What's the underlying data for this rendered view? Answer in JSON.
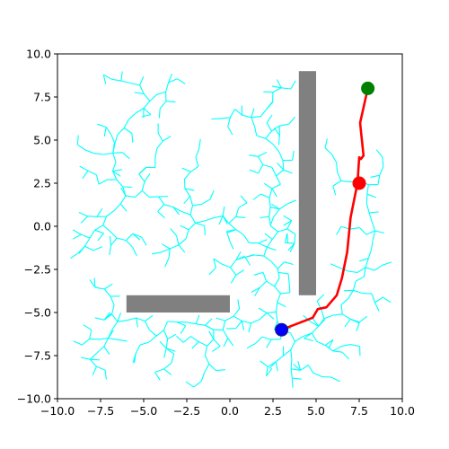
{
  "chart_data": {
    "type": "scatter",
    "title": "",
    "xlabel": "",
    "ylabel": "",
    "xlim": [
      -10,
      10
    ],
    "ylim": [
      -10,
      10
    ],
    "grid": false,
    "x_ticks": [
      -10,
      -7.5,
      -5,
      -2.5,
      0,
      2.5,
      5,
      7.5,
      10
    ],
    "y_ticks": [
      -10,
      -7.5,
      -5,
      -2.5,
      0,
      2.5,
      5,
      7.5,
      10
    ],
    "x_tick_labels": [
      "−10.0",
      "−7.5",
      "−5.0",
      "−2.5",
      "0.0",
      "2.5",
      "5.0",
      "7.5",
      "10.0"
    ],
    "y_tick_labels": [
      "−10.0",
      "−7.5",
      "−5.0",
      "−2.5",
      "0.0",
      "2.5",
      "5.0",
      "7.5",
      "10.0"
    ],
    "obstacles": [
      {
        "name": "vertical-wall",
        "x_range": [
          4.0,
          5.0
        ],
        "y_range": [
          -4.0,
          9.0
        ]
      },
      {
        "name": "horizontal-wall",
        "x_range": [
          -6.0,
          0.0
        ],
        "y_range": [
          -5.0,
          -4.0
        ]
      }
    ],
    "tree": {
      "root": [
        3.0,
        -6.0
      ],
      "seed": 7,
      "branch_count": 520
    },
    "path": {
      "name": "planned-path",
      "x": [
        3.0,
        4.8,
        5.1,
        5.6,
        6.2,
        6.5,
        6.8,
        7.0,
        7.2,
        7.4,
        7.5,
        7.6,
        7.75,
        7.55,
        8.0
      ],
      "y": [
        -6.0,
        -5.3,
        -4.8,
        -4.7,
        -4.0,
        -3.0,
        -1.5,
        0.5,
        1.5,
        2.5,
        4.0,
        3.9,
        4.1,
        6.0,
        8.0
      ]
    },
    "points": [
      {
        "name": "start",
        "x": 3.0,
        "y": -6.0
      },
      {
        "name": "goal",
        "x": 8.0,
        "y": 8.0
      },
      {
        "name": "waypoint",
        "x": 7.5,
        "y": 2.5
      }
    ],
    "colors": {
      "tree": "#00ffff",
      "path": "#ff0000",
      "obstacle": "#808080",
      "start": "#0000ff",
      "goal": "#008000",
      "waypoint": "#ff0000",
      "axes": "#000000"
    }
  }
}
